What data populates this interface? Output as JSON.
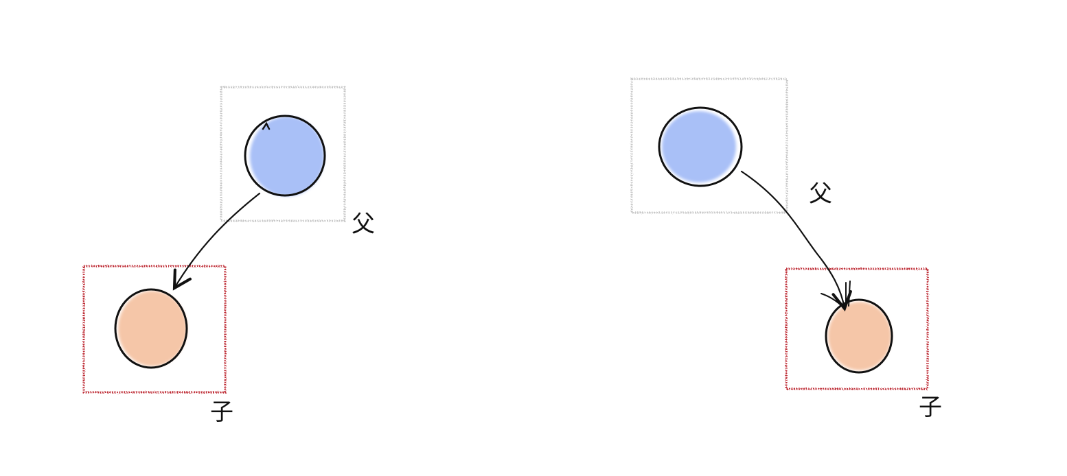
{
  "diagrams": [
    {
      "parent": {
        "label": "父",
        "node_color": "#a9c0f7",
        "frame_color": "#c8c8c8"
      },
      "child": {
        "label": "子",
        "node_color": "#f5c6a8",
        "frame_color": "#c0303a"
      },
      "edge": {
        "from": "parent",
        "to": "child"
      }
    },
    {
      "parent": {
        "label": "父",
        "node_color": "#a9c0f7",
        "frame_color": "#c8c8c8"
      },
      "child": {
        "label": "子",
        "node_color": "#f5c6a8",
        "frame_color": "#c0303a"
      },
      "edge": {
        "from": "parent",
        "to": "child"
      }
    }
  ],
  "colors": {
    "stroke": "#111111"
  }
}
